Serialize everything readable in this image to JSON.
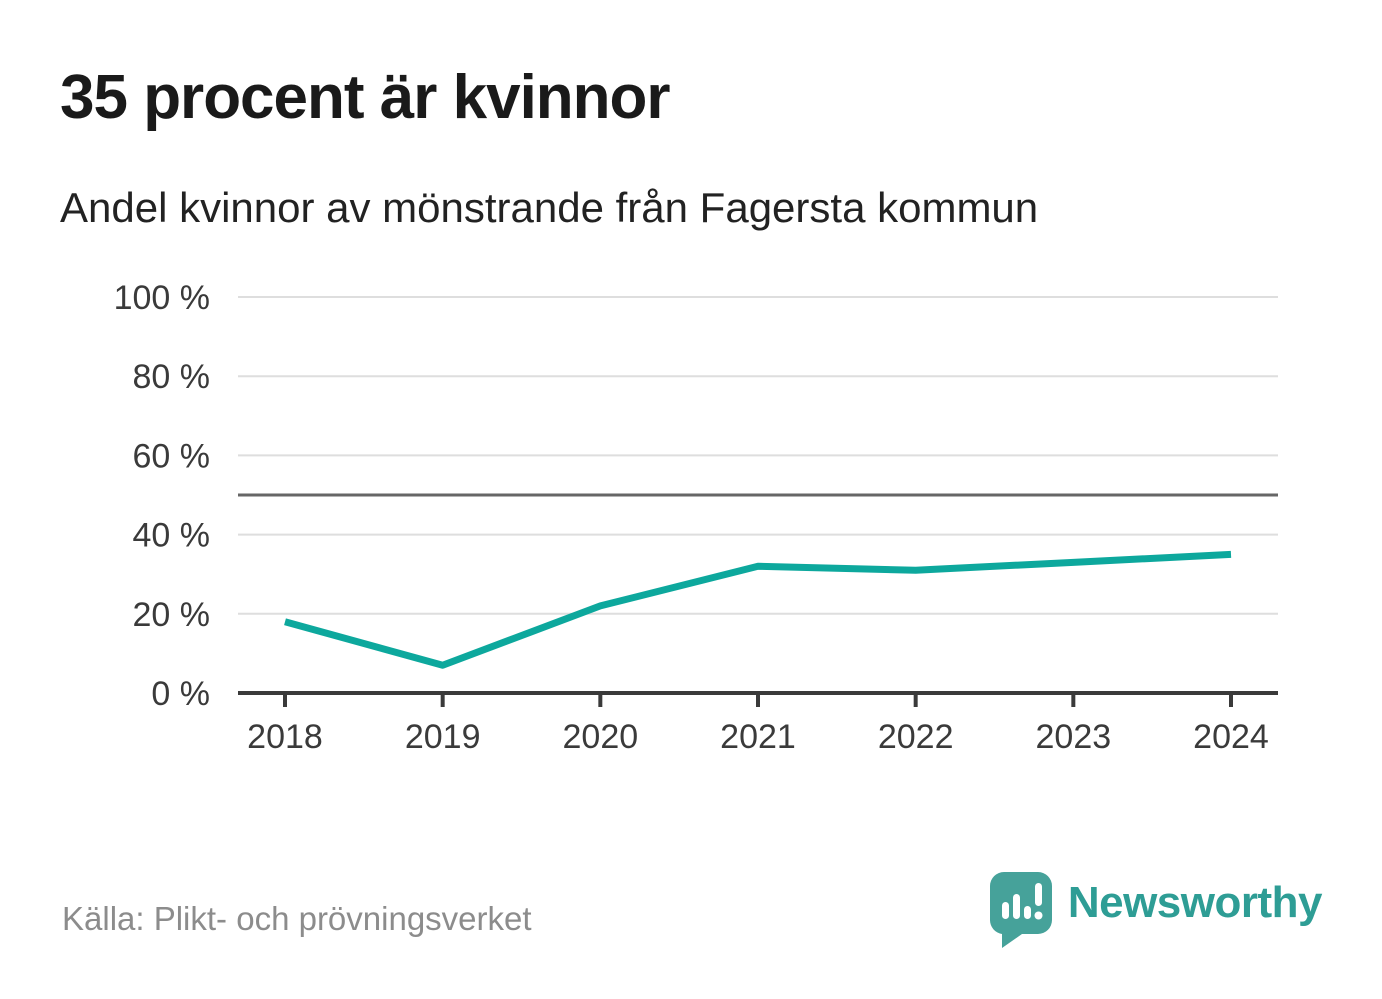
{
  "header": {
    "title": "35 procent är kvinnor",
    "subtitle": "Andel kvinnor av mönstrande från Fagersta kommun"
  },
  "footer": {
    "source": "Källa: Plikt- och prövningsverket",
    "brand": "Newsworthy"
  },
  "colors": {
    "line": "#0da89d",
    "grid": "#dedede",
    "reference_line": "#666666",
    "axis": "#3a3a3a",
    "tick_label": "#3a3a3a",
    "title": "#1a1a1a",
    "subtitle": "#222222",
    "source": "#8c8c8c",
    "brand_text": "#2e9d95",
    "brand_bubble": "#46a29a"
  },
  "chart_data": {
    "type": "line",
    "title": "35 procent är kvinnor",
    "subtitle": "Andel kvinnor av mönstrande från Fagersta kommun",
    "x": [
      2018,
      2019,
      2020,
      2021,
      2022,
      2023,
      2024
    ],
    "series": [
      {
        "name": "Andel kvinnor av mönstrande från Fagersta kommun",
        "values": [
          18,
          7,
          22,
          32,
          31,
          33,
          35
        ]
      }
    ],
    "unit": "%",
    "xlabel": "",
    "ylabel": "",
    "ylim": [
      0,
      100
    ],
    "yticks": [
      0,
      20,
      40,
      60,
      80,
      100
    ],
    "ytick_format": "{v} %",
    "reference_line": 50,
    "grid": "horizontal",
    "legend": "none",
    "line_width": 7
  }
}
